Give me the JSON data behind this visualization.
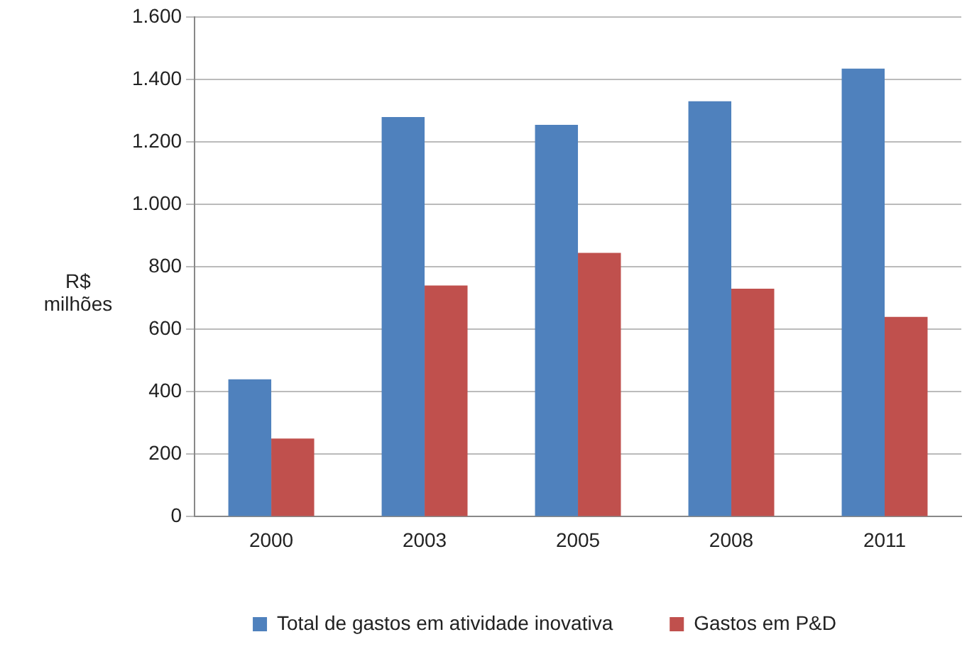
{
  "chart_data": {
    "type": "bar",
    "ylabel": "R$ milhões",
    "categories": [
      "2000",
      "2003",
      "2005",
      "2008",
      "2011"
    ],
    "series": [
      {
        "name": "Total de gastos em atividade inovativa",
        "color": "#4f81bd",
        "values": [
          440,
          1280,
          1255,
          1330,
          1435
        ]
      },
      {
        "name": "Gastos em P&D",
        "color": "#c0504d",
        "values": [
          250,
          740,
          845,
          730,
          640
        ]
      }
    ],
    "ylim": [
      0,
      1600
    ],
    "yticks": [
      0,
      200,
      400,
      600,
      800,
      {
        "value": 1000,
        "label": "1.000"
      },
      {
        "value": 1200,
        "label": "1.200"
      },
      {
        "value": 1400,
        "label": "1.400"
      },
      {
        "value": 1600,
        "label": "1.600"
      }
    ],
    "grid": "y",
    "legend": "bottom"
  }
}
